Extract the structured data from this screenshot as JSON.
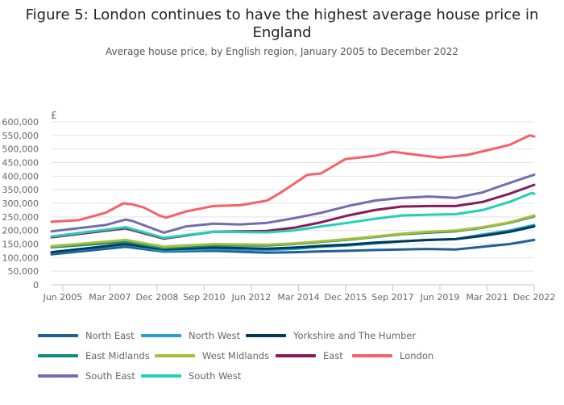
{
  "chart_data": {
    "type": "line",
    "title": "Figure 5: London continues to have the highest average house price in England",
    "subtitle": "Average house price, by English region, January 2005 to December 2022",
    "ylabel": "£",
    "ylim": [
      0,
      600000
    ],
    "yticks": [
      0,
      50000,
      100000,
      150000,
      200000,
      250000,
      300000,
      350000,
      400000,
      450000,
      500000,
      550000,
      600000
    ],
    "ytick_labels": [
      "0",
      "50,000",
      "100,000",
      "150,000",
      "200,000",
      "250,000",
      "300,000",
      "350,000",
      "400,000",
      "450,000",
      "500,000",
      "550,000",
      "600,000"
    ],
    "xlim": [
      "2005-01",
      "2022-12"
    ],
    "xticks": [
      "2005-06",
      "2007-03",
      "2008-12",
      "2010-09",
      "2012-06",
      "2014-03",
      "2015-12",
      "2017-09",
      "2019-06",
      "2021-03",
      "2022-12"
    ],
    "xtick_labels": [
      "Jun 2005",
      "Mar 2007",
      "Dec 2008",
      "Sep 2010",
      "Jun 2012",
      "Mar 2014",
      "Dec 2015",
      "Sep 2017",
      "Jun 2019",
      "Mar 2021",
      "Dec 2022"
    ],
    "grid": "horizontal",
    "legend": "bottom",
    "series": [
      {
        "name": "North East",
        "color": "#206095",
        "points": [
          [
            "2005-01",
            112000
          ],
          [
            "2007-10",
            140000
          ],
          [
            "2009-03",
            122000
          ],
          [
            "2011-01",
            125000
          ],
          [
            "2013-01",
            118000
          ],
          [
            "2014-01",
            120000
          ],
          [
            "2015-01",
            123000
          ],
          [
            "2016-01",
            125000
          ],
          [
            "2017-01",
            128000
          ],
          [
            "2018-01",
            130000
          ],
          [
            "2019-01",
            132000
          ],
          [
            "2020-01",
            130000
          ],
          [
            "2021-01",
            140000
          ],
          [
            "2022-01",
            150000
          ],
          [
            "2022-12",
            165000
          ]
        ]
      },
      {
        "name": "North West",
        "color": "#27a0cc",
        "points": [
          [
            "2005-01",
            118000
          ],
          [
            "2007-10",
            148000
          ],
          [
            "2009-03",
            125000
          ],
          [
            "2011-01",
            132000
          ],
          [
            "2013-01",
            128000
          ],
          [
            "2014-01",
            132000
          ],
          [
            "2015-01",
            140000
          ],
          [
            "2016-01",
            145000
          ],
          [
            "2017-01",
            152000
          ],
          [
            "2018-01",
            160000
          ],
          [
            "2019-01",
            165000
          ],
          [
            "2020-01",
            168000
          ],
          [
            "2021-01",
            185000
          ],
          [
            "2022-01",
            200000
          ],
          [
            "2022-12",
            220000
          ]
        ]
      },
      {
        "name": "Yorkshire and The Humber",
        "color": "#003c57",
        "points": [
          [
            "2005-01",
            120000
          ],
          [
            "2007-10",
            150000
          ],
          [
            "2009-03",
            130000
          ],
          [
            "2011-01",
            137000
          ],
          [
            "2013-01",
            133000
          ],
          [
            "2014-01",
            137000
          ],
          [
            "2015-01",
            143000
          ],
          [
            "2016-01",
            148000
          ],
          [
            "2017-01",
            155000
          ],
          [
            "2018-01",
            160000
          ],
          [
            "2019-01",
            165000
          ],
          [
            "2020-01",
            168000
          ],
          [
            "2021-01",
            180000
          ],
          [
            "2022-01",
            195000
          ],
          [
            "2022-12",
            215000
          ]
        ]
      },
      {
        "name": "East Midlands",
        "color": "#118c7b",
        "points": [
          [
            "2005-01",
            138000
          ],
          [
            "2007-10",
            158000
          ],
          [
            "2009-03",
            135000
          ],
          [
            "2011-01",
            145000
          ],
          [
            "2013-01",
            145000
          ],
          [
            "2014-01",
            150000
          ],
          [
            "2015-01",
            158000
          ],
          [
            "2016-01",
            166000
          ],
          [
            "2017-01",
            176000
          ],
          [
            "2018-01",
            186000
          ],
          [
            "2019-01",
            192000
          ],
          [
            "2020-01",
            197000
          ],
          [
            "2021-01",
            210000
          ],
          [
            "2022-01",
            228000
          ],
          [
            "2022-12",
            252000
          ]
        ]
      },
      {
        "name": "West Midlands",
        "color": "#a8bd3a",
        "points": [
          [
            "2005-01",
            142000
          ],
          [
            "2007-10",
            165000
          ],
          [
            "2009-03",
            140000
          ],
          [
            "2011-01",
            150000
          ],
          [
            "2013-01",
            148000
          ],
          [
            "2014-01",
            152000
          ],
          [
            "2015-01",
            160000
          ],
          [
            "2016-01",
            168000
          ],
          [
            "2017-01",
            178000
          ],
          [
            "2018-01",
            188000
          ],
          [
            "2019-01",
            195000
          ],
          [
            "2020-01",
            200000
          ],
          [
            "2021-01",
            212000
          ],
          [
            "2022-01",
            230000
          ],
          [
            "2022-12",
            255000
          ]
        ]
      },
      {
        "name": "East",
        "color": "#871a5b",
        "points": [
          [
            "2005-01",
            175000
          ],
          [
            "2007-10",
            208000
          ],
          [
            "2009-03",
            170000
          ],
          [
            "2011-01",
            195000
          ],
          [
            "2013-01",
            198000
          ],
          [
            "2014-01",
            210000
          ],
          [
            "2015-01",
            230000
          ],
          [
            "2016-01",
            255000
          ],
          [
            "2017-01",
            275000
          ],
          [
            "2018-01",
            288000
          ],
          [
            "2019-01",
            290000
          ],
          [
            "2020-01",
            290000
          ],
          [
            "2021-01",
            305000
          ],
          [
            "2022-01",
            335000
          ],
          [
            "2022-12",
            368000
          ]
        ]
      },
      {
        "name": "London",
        "color": "#f66068",
        "points": [
          [
            "2005-01",
            232000
          ],
          [
            "2006-01",
            238000
          ],
          [
            "2007-01",
            265000
          ],
          [
            "2007-09",
            300000
          ],
          [
            "2008-01",
            296000
          ],
          [
            "2008-06",
            285000
          ],
          [
            "2009-01",
            255000
          ],
          [
            "2009-04",
            247000
          ],
          [
            "2010-01",
            270000
          ],
          [
            "2011-01",
            290000
          ],
          [
            "2012-01",
            293000
          ],
          [
            "2013-01",
            310000
          ],
          [
            "2013-07",
            339000
          ],
          [
            "2014-07",
            405000
          ],
          [
            "2015-01",
            410000
          ],
          [
            "2015-12",
            463000
          ],
          [
            "2017-01",
            475000
          ],
          [
            "2017-09",
            490000
          ],
          [
            "2018-06",
            480000
          ],
          [
            "2019-06",
            468000
          ],
          [
            "2020-06",
            478000
          ],
          [
            "2021-03",
            495000
          ],
          [
            "2022-01",
            515000
          ],
          [
            "2022-10",
            550000
          ],
          [
            "2022-12",
            546000
          ]
        ]
      },
      {
        "name": "South East",
        "color": "#746cb1",
        "points": [
          [
            "2005-01",
            197000
          ],
          [
            "2007-01",
            220000
          ],
          [
            "2007-10",
            240000
          ],
          [
            "2008-01",
            235000
          ],
          [
            "2009-03",
            192000
          ],
          [
            "2010-01",
            215000
          ],
          [
            "2011-01",
            225000
          ],
          [
            "2012-01",
            222000
          ],
          [
            "2013-01",
            228000
          ],
          [
            "2014-01",
            245000
          ],
          [
            "2015-01",
            265000
          ],
          [
            "2016-01",
            290000
          ],
          [
            "2017-01",
            310000
          ],
          [
            "2018-01",
            320000
          ],
          [
            "2019-01",
            325000
          ],
          [
            "2020-01",
            320000
          ],
          [
            "2021-01",
            340000
          ],
          [
            "2021-06",
            355000
          ],
          [
            "2022-01",
            375000
          ],
          [
            "2022-12",
            405000
          ]
        ]
      },
      {
        "name": "South West",
        "color": "#22d0b6",
        "points": [
          [
            "2005-01",
            178000
          ],
          [
            "2007-10",
            212000
          ],
          [
            "2009-03",
            173000
          ],
          [
            "2011-01",
            195000
          ],
          [
            "2013-01",
            193000
          ],
          [
            "2014-01",
            200000
          ],
          [
            "2015-01",
            215000
          ],
          [
            "2016-01",
            228000
          ],
          [
            "2017-01",
            243000
          ],
          [
            "2018-01",
            255000
          ],
          [
            "2019-01",
            258000
          ],
          [
            "2020-01",
            260000
          ],
          [
            "2021-01",
            275000
          ],
          [
            "2022-01",
            305000
          ],
          [
            "2022-11",
            338000
          ],
          [
            "2022-12",
            335000
          ]
        ]
      }
    ]
  }
}
